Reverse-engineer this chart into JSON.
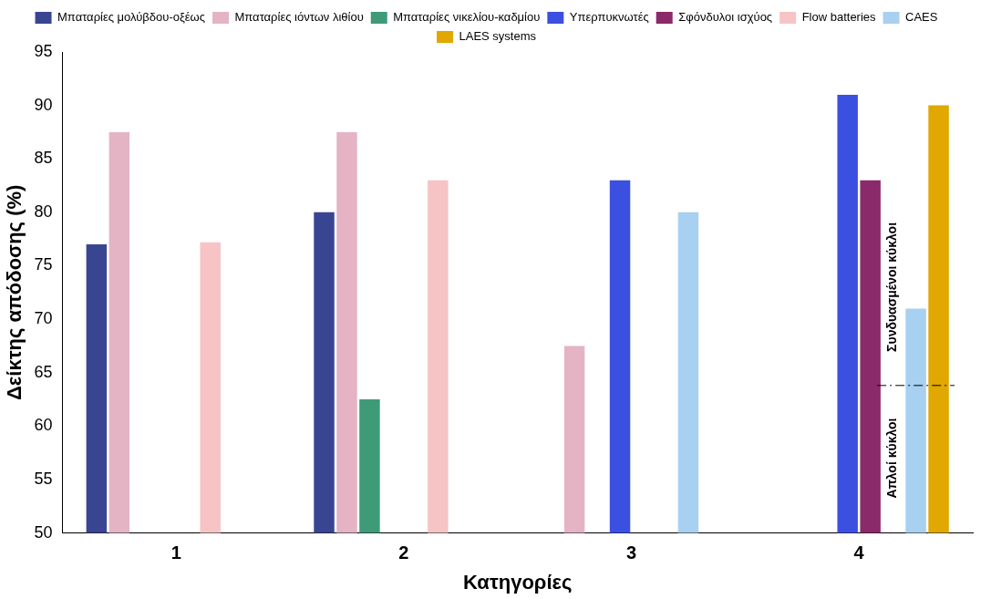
{
  "chart_data": {
    "type": "bar",
    "xlabel": "Κατηγορίες",
    "ylabel": "Δείκτης απόδοσης (%)",
    "categories": [
      "1",
      "2",
      "3",
      "4"
    ],
    "series": [
      {
        "name": "Μπαταρίες μολύβδου-οξέως",
        "color": "#3a4592",
        "values": [
          77,
          80,
          null,
          null
        ]
      },
      {
        "name": "Μπαταρίες ιόντων λιθίου",
        "color": "#e4b4c4",
        "values": [
          87.5,
          87.5,
          67.5,
          null
        ]
      },
      {
        "name": "Μπαταρίες νικελίου-καδμίου",
        "color": "#3f9a78",
        "values": [
          null,
          62.5,
          null,
          null
        ]
      },
      {
        "name": "Υπερπυκνωτές",
        "color": "#3b50e0",
        "values": [
          null,
          null,
          83,
          91
        ]
      },
      {
        "name": "Σφόνδυλοι ισχύος",
        "color": "#8a2a6a",
        "values": [
          null,
          null,
          null,
          83
        ]
      },
      {
        "name": "Flow batteries",
        "color": "#f6c4c4",
        "values": [
          77.2,
          83,
          null,
          null
        ]
      },
      {
        "name": "CAES",
        "color": "#a8d0f0",
        "values": [
          null,
          null,
          80,
          71
        ]
      },
      {
        "name": "LAES systems",
        "color": "#e0a800",
        "values": [
          null,
          null,
          null,
          90
        ]
      }
    ],
    "ylim": [
      50,
      95
    ],
    "yticks": [
      50,
      55,
      60,
      65,
      70,
      75,
      80,
      85,
      90,
      95
    ],
    "grid": false,
    "legend": "top",
    "ref_lines": [
      {
        "axis": "y",
        "value": 63.8,
        "line_style": "dashdot",
        "color": "#000000"
      }
    ],
    "annotations": [
      {
        "text": "Συνδυασμένοι κύκλοι",
        "x": "4",
        "y": 73
      },
      {
        "text": "Απλοί κύκλοι",
        "x": "4",
        "y": 57
      }
    ]
  }
}
